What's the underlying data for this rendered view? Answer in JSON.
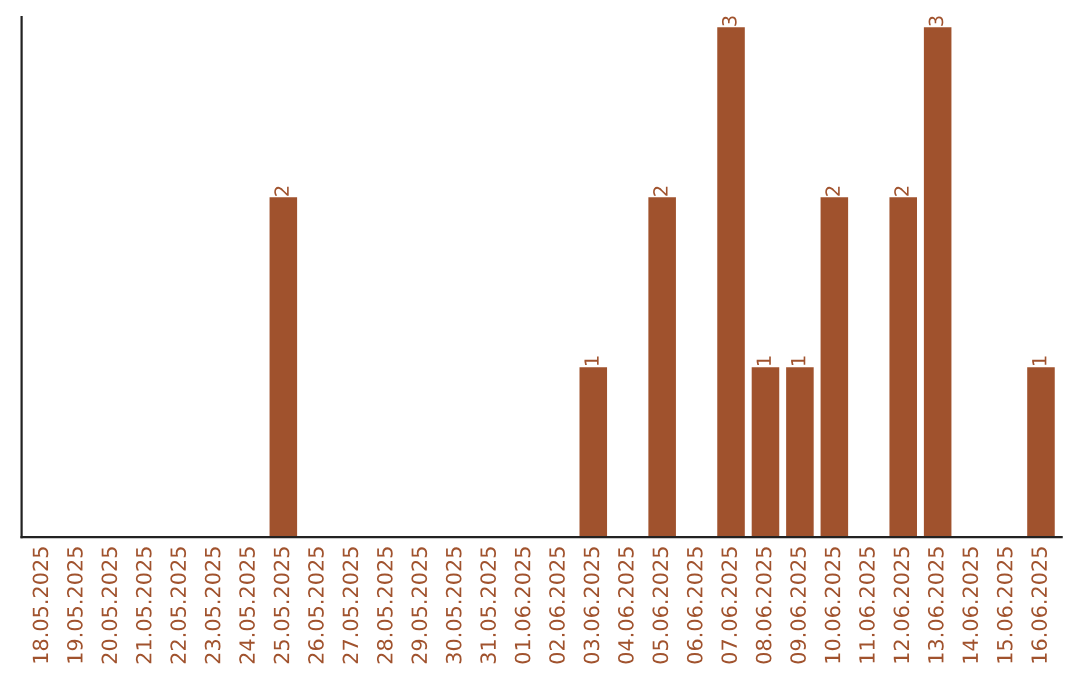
{
  "chart_data": {
    "type": "bar",
    "categories": [
      "18.05.2025",
      "19.05.2025",
      "20.05.2025",
      "21.05.2025",
      "22.05.2025",
      "23.05.2025",
      "24.05.2025",
      "25.05.2025",
      "26.05.2025",
      "27.05.2025",
      "28.05.2025",
      "29.05.2025",
      "30.05.2025",
      "31.05.2025",
      "01.06.2025",
      "02.06.2025",
      "03.06.2025",
      "04.06.2025",
      "05.06.2025",
      "06.06.2025",
      "07.06.2025",
      "08.06.2025",
      "09.06.2025",
      "10.06.2025",
      "11.06.2025",
      "12.06.2025",
      "13.06.2025",
      "14.06.2025",
      "15.06.2025",
      "16.06.2025"
    ],
    "values": [
      0,
      0,
      0,
      0,
      0,
      0,
      0,
      2,
      0,
      0,
      0,
      0,
      0,
      0,
      0,
      0,
      1,
      0,
      2,
      0,
      3,
      1,
      1,
      2,
      0,
      2,
      3,
      0,
      0,
      1
    ],
    "value_labels": [
      null,
      null,
      null,
      null,
      null,
      null,
      null,
      "2",
      null,
      null,
      null,
      null,
      null,
      null,
      null,
      null,
      "1",
      null,
      "2",
      null,
      "3",
      "1",
      "1",
      "2",
      null,
      "2",
      "3",
      null,
      null,
      "1"
    ],
    "color": "#a0522d",
    "tick_labels": "x",
    "grid": false,
    "legend": false
  }
}
